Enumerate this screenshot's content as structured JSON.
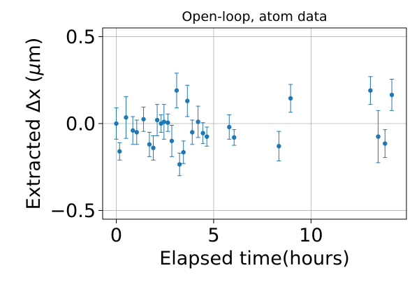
{
  "chart_data": {
    "type": "scatter",
    "title": "Open-loop, atom data",
    "xlabel": "Elapsed time(hours)",
    "ylabel": "Extracted Δx (μm)",
    "ylabel_parts": {
      "prefix": "Extracted Δx (",
      "mu": "μ",
      "suffix": "m)"
    },
    "xlim": [
      -0.7,
      14.9
    ],
    "ylim": [
      -0.55,
      0.55
    ],
    "x_ticks": [
      0,
      5,
      10
    ],
    "y_ticks": [
      0.5,
      0.0,
      -0.5
    ],
    "x_tick_labels": [
      "0",
      "5",
      "10"
    ],
    "y_tick_labels": [
      "0.5",
      "0.0",
      "−0.5"
    ],
    "grid": true,
    "legend": "none",
    "marker_color": "#1f77b4",
    "series": [
      {
        "marker": "circle",
        "error_bars": true,
        "points": [
          {
            "x": 0.0,
            "y": 0.0,
            "err": 0.09
          },
          {
            "x": 0.17,
            "y": -0.16,
            "err": 0.05
          },
          {
            "x": 0.5,
            "y": 0.035,
            "err": 0.12
          },
          {
            "x": 0.85,
            "y": -0.04,
            "err": 0.08
          },
          {
            "x": 1.05,
            "y": -0.05,
            "err": 0.07
          },
          {
            "x": 1.4,
            "y": 0.025,
            "err": 0.07
          },
          {
            "x": 1.7,
            "y": -0.12,
            "err": 0.07
          },
          {
            "x": 1.9,
            "y": -0.14,
            "err": 0.07
          },
          {
            "x": 2.1,
            "y": 0.02,
            "err": 0.09
          },
          {
            "x": 2.3,
            "y": 0.0,
            "err": 0.05
          },
          {
            "x": 2.45,
            "y": 0.01,
            "err": 0.1
          },
          {
            "x": 2.65,
            "y": 0.005,
            "err": 0.05
          },
          {
            "x": 2.85,
            "y": -0.1,
            "err": 0.09
          },
          {
            "x": 3.1,
            "y": 0.19,
            "err": 0.1
          },
          {
            "x": 3.25,
            "y": -0.235,
            "err": 0.065
          },
          {
            "x": 3.45,
            "y": -0.165,
            "err": 0.065
          },
          {
            "x": 3.65,
            "y": 0.13,
            "err": 0.09
          },
          {
            "x": 3.9,
            "y": -0.05,
            "err": 0.07
          },
          {
            "x": 4.2,
            "y": 0.01,
            "err": 0.09
          },
          {
            "x": 4.45,
            "y": -0.055,
            "err": 0.06
          },
          {
            "x": 4.65,
            "y": -0.075,
            "err": 0.055
          },
          {
            "x": 5.8,
            "y": -0.02,
            "err": 0.07
          },
          {
            "x": 6.05,
            "y": -0.08,
            "err": 0.045
          },
          {
            "x": 8.35,
            "y": -0.13,
            "err": 0.085
          },
          {
            "x": 8.95,
            "y": 0.145,
            "err": 0.08
          },
          {
            "x": 13.05,
            "y": 0.19,
            "err": 0.08
          },
          {
            "x": 13.45,
            "y": -0.075,
            "err": 0.15
          },
          {
            "x": 13.8,
            "y": -0.115,
            "err": 0.08
          },
          {
            "x": 14.15,
            "y": 0.165,
            "err": 0.09
          }
        ]
      }
    ]
  }
}
